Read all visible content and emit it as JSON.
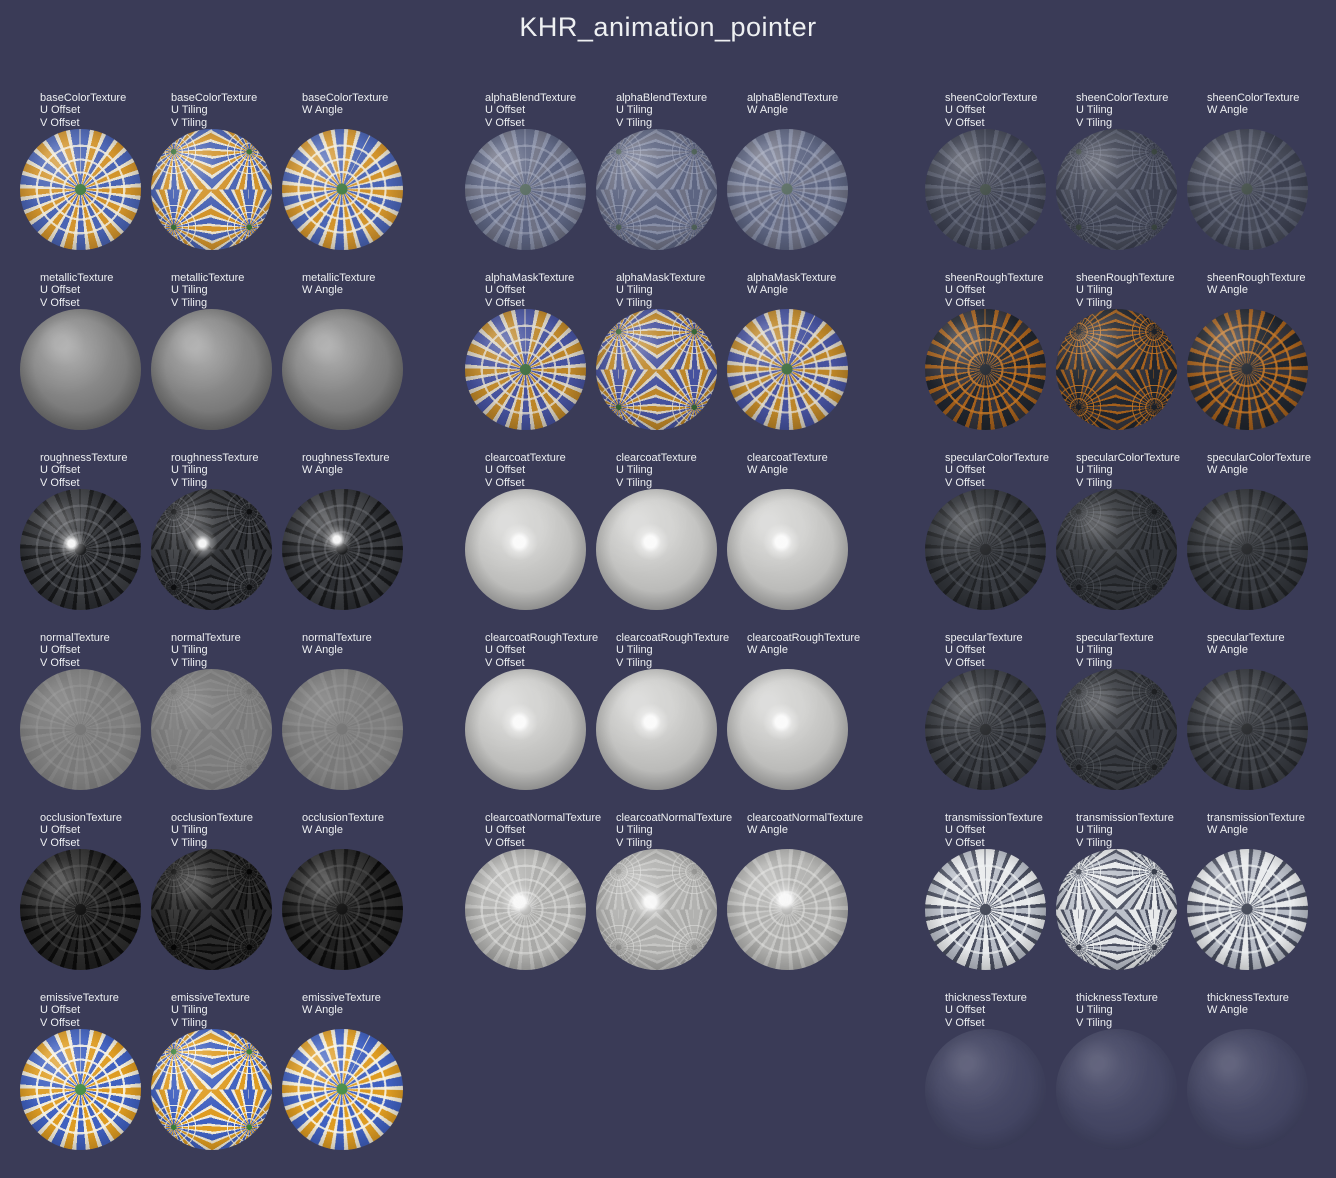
{
  "title": "KHR_animation_pointer",
  "colors": {
    "background": "#3a3b57",
    "text": "#eef0f2",
    "sheen_orange": "#a55e18",
    "mosaic_blue": "#4a64b4",
    "mosaic_orange": "#d2942c",
    "mosaic_cream": "#e9e2cf",
    "mosaic_green": "#3e7a3e"
  },
  "variants": [
    {
      "line1": "U Offset",
      "line2": "V Offset"
    },
    {
      "line1": "U Tiling",
      "line2": "V Tiling"
    },
    {
      "line1": "W Angle",
      "line2": ""
    }
  ],
  "rows": [
    {
      "groups": [
        {
          "texture": "baseColorTexture",
          "style": "baseColor"
        },
        {
          "texture": "alphaBlendTexture",
          "style": "alphaBlend"
        },
        {
          "texture": "sheenColorTexture",
          "style": "sheenColor"
        }
      ]
    },
    {
      "groups": [
        {
          "texture": "metallicTexture",
          "style": "metallic"
        },
        {
          "texture": "alphaMaskTexture",
          "style": "alphaMask"
        },
        {
          "texture": "sheenRoughTexture",
          "style": "sheenRough"
        }
      ]
    },
    {
      "groups": [
        {
          "texture": "roughnessTexture",
          "style": "roughness"
        },
        {
          "texture": "clearcoatTexture",
          "style": "clearcoat"
        },
        {
          "texture": "specularColorTexture",
          "style": "specularColor"
        }
      ]
    },
    {
      "groups": [
        {
          "texture": "normalTexture",
          "style": "normal"
        },
        {
          "texture": "clearcoatRoughTexture",
          "style": "clearcoatRough"
        },
        {
          "texture": "specularTexture",
          "style": "specular"
        }
      ]
    },
    {
      "groups": [
        {
          "texture": "occlusionTexture",
          "style": "occlusion"
        },
        {
          "texture": "clearcoatNormalTexture",
          "style": "clearcoatNormal"
        },
        {
          "texture": "transmissionTexture",
          "style": "transmission"
        }
      ]
    },
    {
      "groups": [
        {
          "texture": "emissiveTexture",
          "style": "emissive"
        },
        null,
        {
          "texture": "thicknessTexture",
          "style": "thickness"
        }
      ]
    }
  ]
}
